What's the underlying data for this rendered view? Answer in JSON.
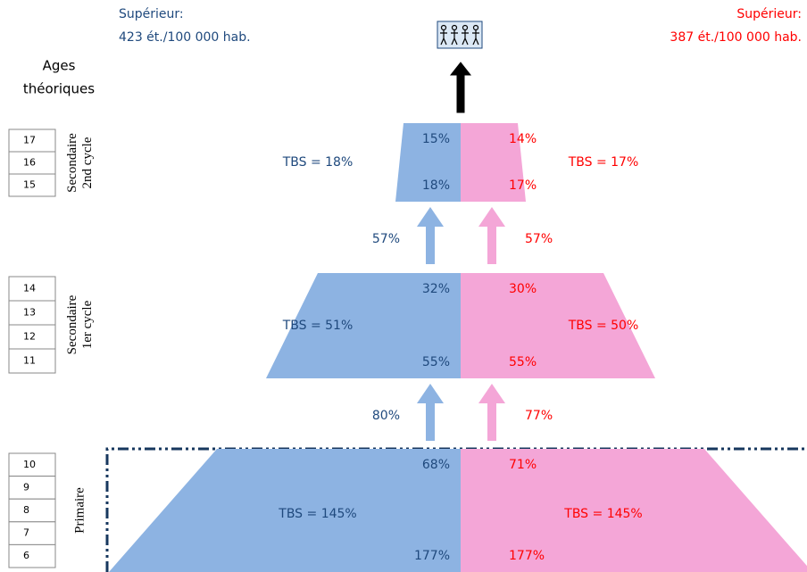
{
  "header": {
    "left": {
      "label": "Supérieur:",
      "value": "423 ét./100 000 hab."
    },
    "right": {
      "label": "Supérieur:",
      "value": "387 ét./100 000 hab."
    }
  },
  "ages_title": [
    "Ages",
    "théoriques"
  ],
  "levels": [
    {
      "name": [
        "Secondaire",
        "2nd cycle"
      ],
      "ages": [
        17,
        16,
        15
      ],
      "boys": {
        "top": "15%",
        "bottom": "18%",
        "tbs": "TBS = 18%"
      },
      "girls": {
        "top": "14%",
        "bottom": "17%",
        "tbs": "TBS = 17%"
      }
    },
    {
      "name": [
        "Secondaire",
        "1er cycle"
      ],
      "ages": [
        14,
        13,
        12,
        11
      ],
      "boys": {
        "top": "32%",
        "bottom": "55%",
        "tbs": "TBS = 51%"
      },
      "girls": {
        "top": "30%",
        "bottom": "55%",
        "tbs": "TBS = 50%"
      }
    },
    {
      "name": [
        "Primaire"
      ],
      "ages": [
        10,
        9,
        8,
        7,
        6
      ],
      "boys": {
        "top": "68%",
        "bottom": "177%",
        "tbs": "TBS = 145%"
      },
      "girls": {
        "top": "71%",
        "bottom": "177%",
        "tbs": "TBS = 145%"
      }
    }
  ],
  "transitions": [
    {
      "boys": "57%",
      "girls": "57%"
    },
    {
      "boys": "80%",
      "girls": "77%"
    }
  ]
}
